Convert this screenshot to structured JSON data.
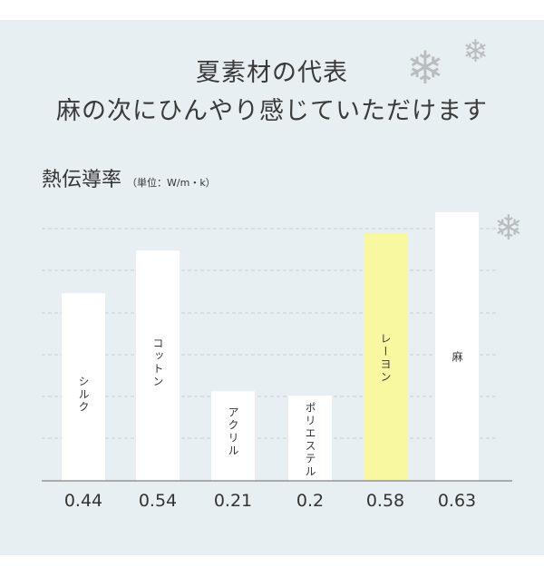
{
  "headline": {
    "line1": "夏素材の代表",
    "line2": "麻の次にひんやり感じていただけます"
  },
  "colors": {
    "background": "#e8eff2",
    "bar": "#ffffff",
    "highlight_bar": "#f7f8a0",
    "snowflake": "#b9bdc0"
  },
  "icons": [
    "snowflake-icon",
    "snowflake-icon",
    "snowflake-icon"
  ],
  "chart_data": {
    "type": "bar",
    "title": "熱伝導率",
    "unit": "（単位：W/m・k）",
    "categories": [
      "シルク",
      "コットン",
      "アクリル",
      "ポリエステル",
      "レーヨン",
      "麻"
    ],
    "values": [
      0.44,
      0.54,
      0.21,
      0.2,
      0.58,
      0.63
    ],
    "value_labels": [
      "0.44",
      "0.54",
      "0.21",
      "0.2",
      "0.58",
      "0.63"
    ],
    "highlighted": "レーヨン",
    "grid": true,
    "ylim": [
      0,
      0.66
    ]
  }
}
